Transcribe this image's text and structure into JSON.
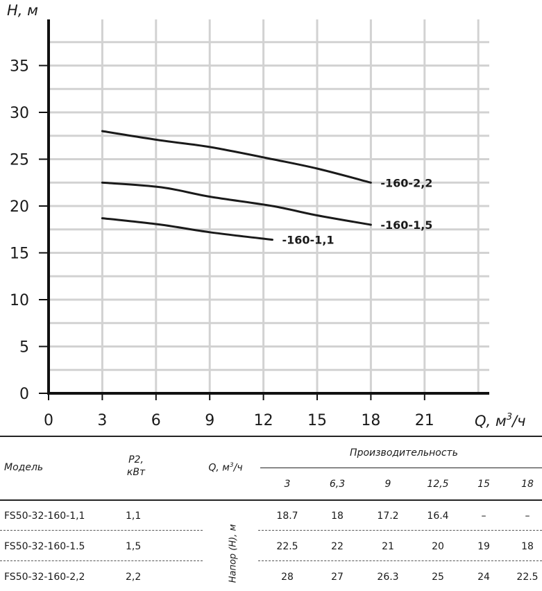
{
  "chart_data": {
    "type": "line",
    "ylabel": "H, м",
    "xlabel_prefix": "Q, м",
    "xlabel_sup": "3",
    "xlabel_suffix": "/ч",
    "xlim": [
      0,
      24
    ],
    "ylim": [
      0,
      39
    ],
    "grid": true,
    "x_ticks": [
      "0",
      "3",
      "6",
      "9",
      "12",
      "15",
      "18",
      "21"
    ],
    "y_ticks": [
      "0",
      "5",
      "10",
      "15",
      "20",
      "25",
      "30",
      "35"
    ],
    "series": [
      {
        "name": "-160-1,1",
        "x": [
          3,
          6.3,
          9,
          12.5
        ],
        "y": [
          18.7,
          18,
          17.2,
          16.4
        ]
      },
      {
        "name": "-160-1,5",
        "x": [
          3,
          6.3,
          9,
          12.5,
          15,
          18
        ],
        "y": [
          22.5,
          22,
          21,
          20,
          19,
          18
        ]
      },
      {
        "name": "-160-2,2",
        "x": [
          3,
          6.3,
          9,
          12.5,
          15,
          18
        ],
        "y": [
          28,
          27,
          26.3,
          25,
          24,
          22.5
        ]
      }
    ]
  },
  "table": {
    "model_header": "Модель",
    "p2_header_1": "P2,",
    "p2_header_2": "кВт",
    "q_header": "Q, м",
    "q_header_sup": "3",
    "q_header_suffix": "/ч",
    "perf_header": "Производительность",
    "flow_values": [
      "3",
      "6,3",
      "9",
      "12,5",
      "15",
      "18"
    ],
    "head_label": "Напор (H), м",
    "rows": [
      {
        "model": "FS50-32-160-1,1",
        "p2": "1,1",
        "values": [
          "18.7",
          "18",
          "17.2",
          "16.4",
          "–",
          "–"
        ]
      },
      {
        "model": "FS50-32-160-1.5",
        "p2": "1,5",
        "values": [
          "22.5",
          "22",
          "21",
          "20",
          "19",
          "18"
        ]
      },
      {
        "model": "FS50-32-160-2,2",
        "p2": "2,2",
        "values": [
          "28",
          "27",
          "26.3",
          "25",
          "24",
          "22.5"
        ]
      }
    ]
  }
}
